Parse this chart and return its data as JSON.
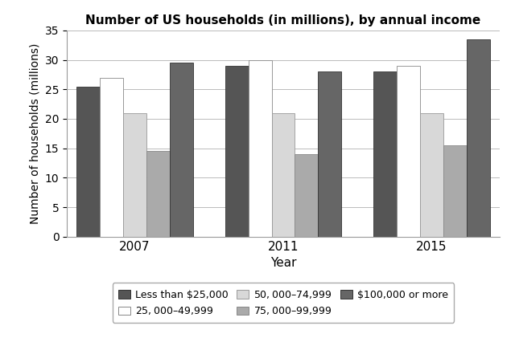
{
  "title": "Number of US households (in millions), by annual income",
  "xlabel": "Year",
  "ylabel": "Number of households (millions)",
  "years": [
    "2007",
    "2011",
    "2015"
  ],
  "categories": [
    "Less than $25,000",
    "$25,000–$49,999",
    "$50,000–$74,999",
    "$75,000–$99,999",
    "$100,000 or more"
  ],
  "values": {
    "Less than $25,000": [
      25.5,
      29.0,
      28.0
    ],
    "$25,000–$49,999": [
      27.0,
      30.0,
      29.0
    ],
    "$50,000–$74,999": [
      21.0,
      21.0,
      21.0
    ],
    "$75,000–$99,999": [
      14.5,
      14.0,
      15.5
    ],
    "$100,000 or more": [
      29.5,
      28.0,
      33.5
    ]
  },
  "colors": {
    "Less than $25,000": "#555555",
    "$25,000–$49,999": "#ffffff",
    "$50,000–$74,999": "#d8d8d8",
    "$75,000–$99,999": "#aaaaaa",
    "$100,000 or more": "#666666"
  },
  "edge_colors": {
    "Less than $25,000": "#333333",
    "$25,000–$49,999": "#888888",
    "$50,000–$74,999": "#999999",
    "$75,000–$99,999": "#888888",
    "$100,000 or more": "#333333"
  },
  "ylim": [
    0,
    35
  ],
  "yticks": [
    0,
    5,
    10,
    15,
    20,
    25,
    30,
    35
  ],
  "bar_width": 0.11,
  "figsize": [
    6.4,
    4.21
  ],
  "dpi": 100,
  "legend_ncol": 3,
  "legend_labels_row1": [
    "Less than $25,000",
    "$25,000–$49,999",
    "$50,000–$74,999"
  ],
  "legend_labels_row2": [
    "$75,000–$99,999",
    "$100,000 or more"
  ]
}
